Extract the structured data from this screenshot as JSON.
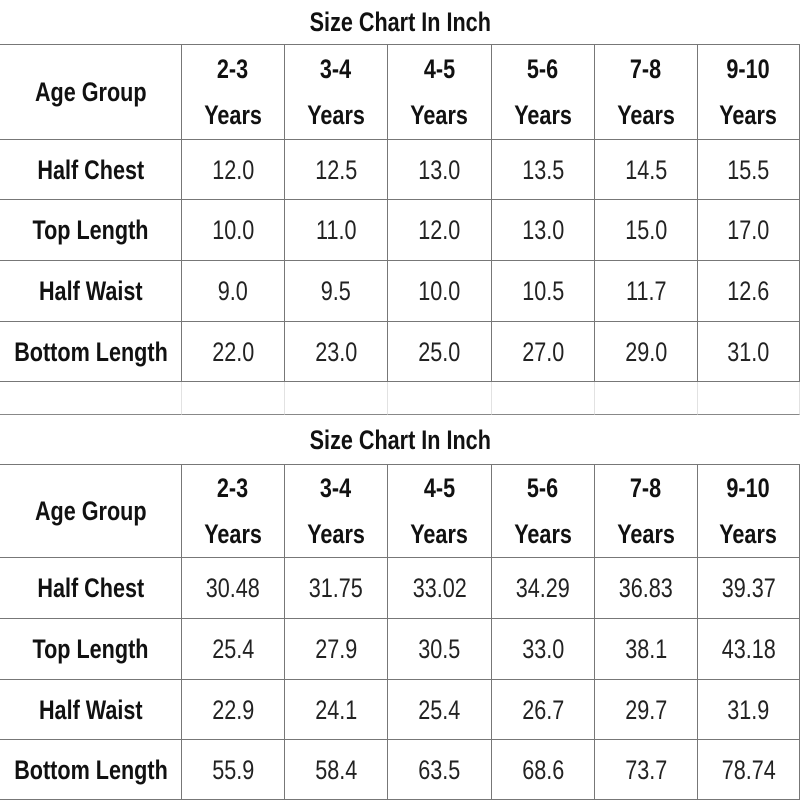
{
  "tables": [
    {
      "title": "Size Chart In Inch",
      "row_header": "Age Group",
      "columns": [
        [
          "2-3",
          "Years"
        ],
        [
          "3-4",
          "Years"
        ],
        [
          "4-5",
          "Years"
        ],
        [
          "5-6",
          "Years"
        ],
        [
          "7-8",
          "Years"
        ],
        [
          "9-10",
          "Years"
        ]
      ],
      "rows": [
        {
          "label": "Half Chest",
          "values": [
            "12.0",
            "12.5",
            "13.0",
            "13.5",
            "14.5",
            "15.5"
          ]
        },
        {
          "label": "Top Length",
          "values": [
            "10.0",
            "11.0",
            "12.0",
            "13.0",
            "15.0",
            "17.0"
          ]
        },
        {
          "label": "Half Waist",
          "values": [
            "9.0",
            "9.5",
            "10.0",
            "10.5",
            "11.7",
            "12.6"
          ]
        },
        {
          "label": "Bottom Length",
          "values": [
            "22.0",
            "23.0",
            "25.0",
            "27.0",
            "29.0",
            "31.0"
          ]
        }
      ]
    },
    {
      "title": "Size Chart In Inch",
      "row_header": "Age Group",
      "columns": [
        [
          "2-3",
          "Years"
        ],
        [
          "3-4",
          "Years"
        ],
        [
          "4-5",
          "Years"
        ],
        [
          "5-6",
          "Years"
        ],
        [
          "7-8",
          "Years"
        ],
        [
          "9-10",
          "Years"
        ]
      ],
      "rows": [
        {
          "label": "Half Chest",
          "values": [
            "30.48",
            "31.75",
            "33.02",
            "34.29",
            "36.83",
            "39.37"
          ]
        },
        {
          "label": "Top Length",
          "values": [
            "25.4",
            "27.9",
            "30.5",
            "33.0",
            "38.1",
            "43.18"
          ]
        },
        {
          "label": "Half Waist",
          "values": [
            "22.9",
            "24.1",
            "25.4",
            "26.7",
            "29.7",
            "31.9"
          ]
        },
        {
          "label": "Bottom Length",
          "values": [
            "55.9",
            "58.4",
            "63.5",
            "68.6",
            "73.7",
            "78.74"
          ]
        }
      ]
    }
  ]
}
